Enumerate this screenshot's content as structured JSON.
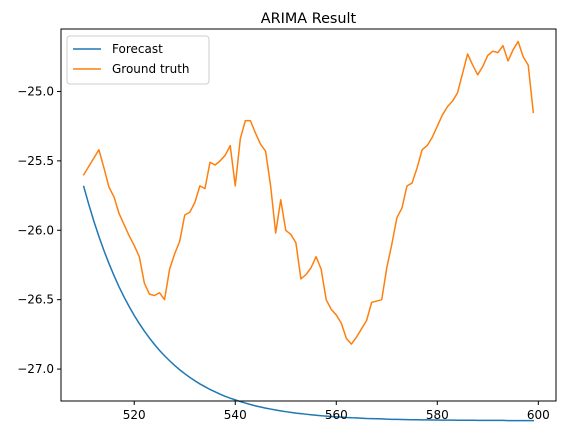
{
  "chart_data": {
    "type": "line",
    "title": "ARIMA Result",
    "xlabel": "",
    "ylabel": "",
    "xlim": [
      505.5,
      603.5
    ],
    "ylim": [
      -27.23,
      -24.55
    ],
    "x_ticks": [
      520,
      540,
      560,
      580,
      600
    ],
    "y_ticks": [
      -27.0,
      -26.5,
      -26.0,
      -25.5,
      -25.0
    ],
    "grid": false,
    "legend_position": "top-left",
    "series": [
      {
        "name": "Forecast",
        "color": "#1f77b4",
        "x": [
          510,
          511,
          512,
          513,
          514,
          515,
          516,
          517,
          518,
          519,
          520,
          521,
          522,
          523,
          524,
          525,
          526,
          527,
          528,
          529,
          530,
          531,
          532,
          533,
          534,
          535,
          536,
          537,
          538,
          539,
          540,
          541,
          542,
          543,
          544,
          545,
          546,
          547,
          548,
          549,
          550,
          551,
          552,
          553,
          554,
          555,
          556,
          557,
          558,
          559,
          560,
          561,
          562,
          563,
          564,
          565,
          566,
          567,
          568,
          569,
          570,
          571,
          572,
          573,
          574,
          575,
          576,
          577,
          578,
          579,
          580,
          581,
          582,
          583,
          584,
          585,
          586,
          587,
          588,
          589,
          590,
          591,
          592,
          593,
          594,
          595,
          596,
          597,
          598,
          599
        ],
        "y": [
          -25.685,
          -25.814,
          -25.934,
          -26.044,
          -26.146,
          -26.24,
          -26.327,
          -26.408,
          -26.482,
          -26.55,
          -26.614,
          -26.672,
          -26.726,
          -26.776,
          -26.822,
          -26.865,
          -26.904,
          -26.94,
          -26.974,
          -27.005,
          -27.033,
          -27.06,
          -27.084,
          -27.107,
          -27.127,
          -27.147,
          -27.164,
          -27.181,
          -27.196,
          -27.21,
          -27.222,
          -27.234,
          -27.245,
          -27.255,
          -27.265,
          -27.273,
          -27.281,
          -27.288,
          -27.295,
          -27.301,
          -27.307,
          -27.312,
          -27.317,
          -27.321,
          -27.325,
          -27.329,
          -27.333,
          -27.336,
          -27.339,
          -27.342,
          -27.344,
          -27.346,
          -27.349,
          -27.351,
          -27.352,
          -27.354,
          -27.356,
          -27.357,
          -27.358,
          -27.359,
          -27.361,
          -27.362,
          -27.362,
          -27.363,
          -27.364,
          -27.365,
          -27.365,
          -27.366,
          -27.366,
          -27.367,
          -27.367,
          -27.368,
          -27.368,
          -27.368,
          -27.369,
          -27.369,
          -27.369,
          -27.369,
          -27.37,
          -27.37,
          -27.37,
          -27.37,
          -27.37,
          -27.37,
          -27.371,
          -27.371,
          -27.371,
          -27.371,
          -27.371,
          -27.371
        ]
      },
      {
        "name": "Ground truth",
        "color": "#ff7f0e",
        "x": [
          510,
          511,
          512,
          513,
          514,
          515,
          516,
          517,
          518,
          519,
          520,
          521,
          522,
          523,
          524,
          525,
          526,
          527,
          528,
          529,
          530,
          531,
          532,
          533,
          534,
          535,
          536,
          537,
          538,
          539,
          540,
          541,
          542,
          543,
          544,
          545,
          546,
          547,
          548,
          549,
          550,
          551,
          552,
          553,
          554,
          555,
          556,
          557,
          558,
          559,
          560,
          561,
          562,
          563,
          564,
          565,
          566,
          567,
          568,
          569,
          570,
          571,
          572,
          573,
          574,
          575,
          576,
          577,
          578,
          579,
          580,
          581,
          582,
          583,
          584,
          585,
          586,
          587,
          588,
          589,
          590,
          591,
          592,
          593,
          594,
          595,
          596,
          597,
          598,
          599
        ],
        "y": [
          -25.6,
          -25.54,
          -25.48,
          -25.42,
          -25.55,
          -25.69,
          -25.76,
          -25.88,
          -25.96,
          -26.04,
          -26.11,
          -26.19,
          -26.38,
          -26.46,
          -26.47,
          -26.45,
          -26.5,
          -26.28,
          -26.17,
          -26.08,
          -25.89,
          -25.87,
          -25.8,
          -25.68,
          -25.7,
          -25.51,
          -25.53,
          -25.5,
          -25.46,
          -25.39,
          -25.68,
          -25.34,
          -25.21,
          -25.21,
          -25.3,
          -25.38,
          -25.43,
          -25.68,
          -26.02,
          -25.78,
          -26.0,
          -26.03,
          -26.09,
          -26.35,
          -26.32,
          -26.27,
          -26.19,
          -26.28,
          -26.5,
          -26.57,
          -26.61,
          -26.67,
          -26.78,
          -26.82,
          -26.77,
          -26.71,
          -26.65,
          -26.52,
          -26.51,
          -26.5,
          -26.27,
          -26.1,
          -25.91,
          -25.84,
          -25.68,
          -25.66,
          -25.55,
          -25.42,
          -25.39,
          -25.33,
          -25.25,
          -25.17,
          -25.11,
          -25.07,
          -25.01,
          -24.87,
          -24.73,
          -24.81,
          -24.88,
          -24.82,
          -24.74,
          -24.71,
          -24.72,
          -24.67,
          -24.78,
          -24.7,
          -24.64,
          -24.75,
          -24.81,
          -25.15
        ]
      }
    ]
  }
}
